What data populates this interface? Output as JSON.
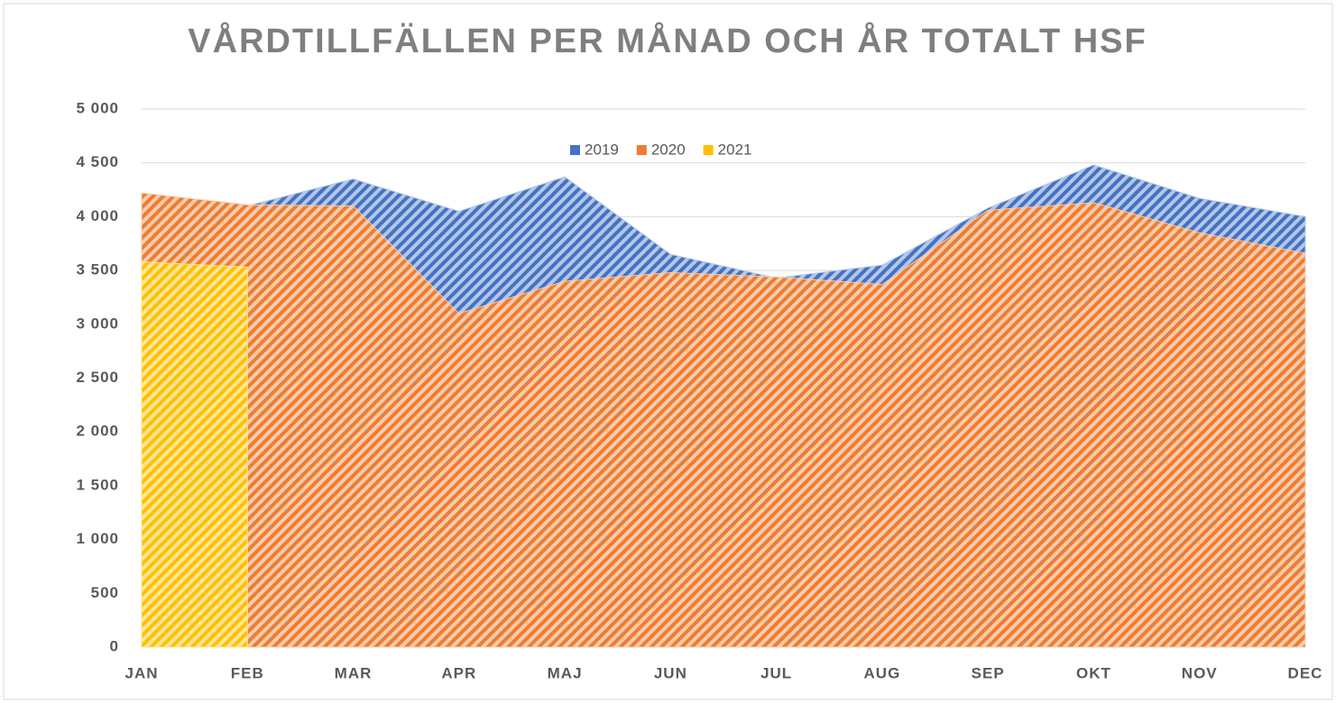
{
  "chart_data": {
    "type": "area",
    "title": "VÅRDTILLFÄLLEN PER MÅNAD OCH ÅR TOTALT HSF",
    "categories": [
      "JAN",
      "FEB",
      "MAR",
      "APR",
      "MAJ",
      "JUN",
      "JUL",
      "AUG",
      "SEP",
      "OKT",
      "NOV",
      "DEC"
    ],
    "series": [
      {
        "name": "2019",
        "color": "#4472c4",
        "values": [
          4150,
          4100,
          4350,
          4050,
          4370,
          3650,
          3430,
          3550,
          4080,
          4480,
          4170,
          4000
        ]
      },
      {
        "name": "2020",
        "color": "#ed7d31",
        "values": [
          4220,
          4110,
          4100,
          3100,
          3400,
          3480,
          3440,
          3370,
          4060,
          4130,
          3850,
          3660
        ]
      },
      {
        "name": "2021",
        "color": "#ffc000",
        "values": [
          3580,
          3530,
          null,
          null,
          null,
          null,
          null,
          null,
          null,
          null,
          null,
          null
        ]
      }
    ],
    "ylim": [
      0,
      5000
    ],
    "yticks": [
      0,
      500,
      {
        "value": 1000,
        "label": "1 000"
      },
      {
        "value": 1500,
        "label": "1 500"
      },
      {
        "value": 2000,
        "label": "2 000"
      },
      {
        "value": 2500,
        "label": "2 500"
      },
      {
        "value": 3000,
        "label": "3 000"
      },
      {
        "value": 3500,
        "label": "3 500"
      },
      {
        "value": 4000,
        "label": "4 000"
      },
      {
        "value": 4500,
        "label": "4 500"
      },
      {
        "value": 5000,
        "label": "5 000"
      }
    ],
    "grid": true,
    "legend": "top"
  }
}
